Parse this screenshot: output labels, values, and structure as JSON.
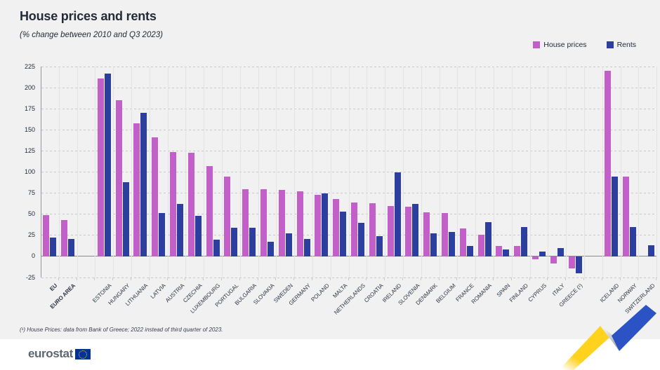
{
  "header": {
    "title": "House prices and rents",
    "subtitle": "(% change between 2010 and Q3 2023)"
  },
  "legend": {
    "items": [
      {
        "label": "House prices",
        "color": "#c25fc8"
      },
      {
        "label": "Rents",
        "color": "#2c3f9e"
      }
    ]
  },
  "chart_data": {
    "type": "bar",
    "title": "House prices and rents",
    "subtitle": "(% change between 2010 and Q3 2023)",
    "unit": "% change between 2010 and Q3 2023",
    "ylim": [
      -25,
      225
    ],
    "ytick_interval": 25,
    "grid": true,
    "legend_position": "top-right",
    "series": [
      {
        "name": "House prices",
        "key": "house_prices",
        "color": "#c25fc8"
      },
      {
        "name": "Rents",
        "key": "rents",
        "color": "#2c3f9e"
      }
    ],
    "groups": [
      {
        "label": "EU",
        "bold": true,
        "house_prices": 49,
        "rents": 22
      },
      {
        "label": "EURO AREA",
        "bold": true,
        "house_prices": 43,
        "rents": 21
      },
      {
        "label": "",
        "gap": true
      },
      {
        "label": "ESTONIA",
        "house_prices": 211,
        "rents": 217
      },
      {
        "label": "HUNGARY",
        "house_prices": 185,
        "rents": 88
      },
      {
        "label": "LITHUANIA",
        "house_prices": 158,
        "rents": 170
      },
      {
        "label": "LATVIA",
        "house_prices": 141,
        "rents": 51
      },
      {
        "label": "AUSTRIA",
        "house_prices": 124,
        "rents": 62
      },
      {
        "label": "CZECHIA",
        "house_prices": 123,
        "rents": 48
      },
      {
        "label": "LUXEMBOURG",
        "house_prices": 107,
        "rents": 20
      },
      {
        "label": "PORTUGAL",
        "house_prices": 95,
        "rents": 34
      },
      {
        "label": "BULGARIA",
        "house_prices": 80,
        "rents": 34
      },
      {
        "label": "SLOVAKIA",
        "house_prices": 80,
        "rents": 17
      },
      {
        "label": "SWEDEN",
        "house_prices": 79,
        "rents": 27
      },
      {
        "label": "GERMANY",
        "house_prices": 77,
        "rents": 21
      },
      {
        "label": "POLAND",
        "house_prices": 73,
        "rents": 75
      },
      {
        "label": "MALTA",
        "house_prices": 68,
        "rents": 53
      },
      {
        "label": "NETHERLANDS",
        "house_prices": 64,
        "rents": 40
      },
      {
        "label": "CROATIA",
        "house_prices": 63,
        "rents": 24
      },
      {
        "label": "IRELAND",
        "house_prices": 60,
        "rents": 100
      },
      {
        "label": "SLOVENIA",
        "house_prices": 59,
        "rents": 62
      },
      {
        "label": "DENMARK",
        "house_prices": 52,
        "rents": 27
      },
      {
        "label": "BELGIUM",
        "house_prices": 51,
        "rents": 29
      },
      {
        "label": "FRANCE",
        "house_prices": 33,
        "rents": 12
      },
      {
        "label": "ROMANIA",
        "house_prices": 26,
        "rents": 41
      },
      {
        "label": "SPAIN",
        "house_prices": 12,
        "rents": 8
      },
      {
        "label": "FINLAND",
        "house_prices": 12,
        "rents": 35
      },
      {
        "label": "CYPRUS",
        "house_prices": -3,
        "rents": 6
      },
      {
        "label": "ITALY",
        "house_prices": -8,
        "rents": 10
      },
      {
        "label": "GREECE (¹)",
        "house_prices": -14,
        "rents": -20
      },
      {
        "label": "",
        "gap": true
      },
      {
        "label": "ICELAND",
        "house_prices": 220,
        "rents": 95
      },
      {
        "label": "NORWAY",
        "house_prices": 95,
        "rents": 35
      },
      {
        "label": "SWITZERLAND",
        "house_prices": null,
        "rents": 13
      }
    ]
  },
  "footnote": "(¹) House Prices: data from Bank of Greece; 2022 instead of third quarter of 2023.",
  "footer": {
    "logo_text": "eurostat"
  },
  "colors": {
    "background": "#f1f1f2",
    "house_prices": "#c25fc8",
    "rents": "#2c3f9e",
    "zero_line": "#8a8a8e",
    "gridline": "#c8c8cc",
    "text": "#232b38"
  }
}
